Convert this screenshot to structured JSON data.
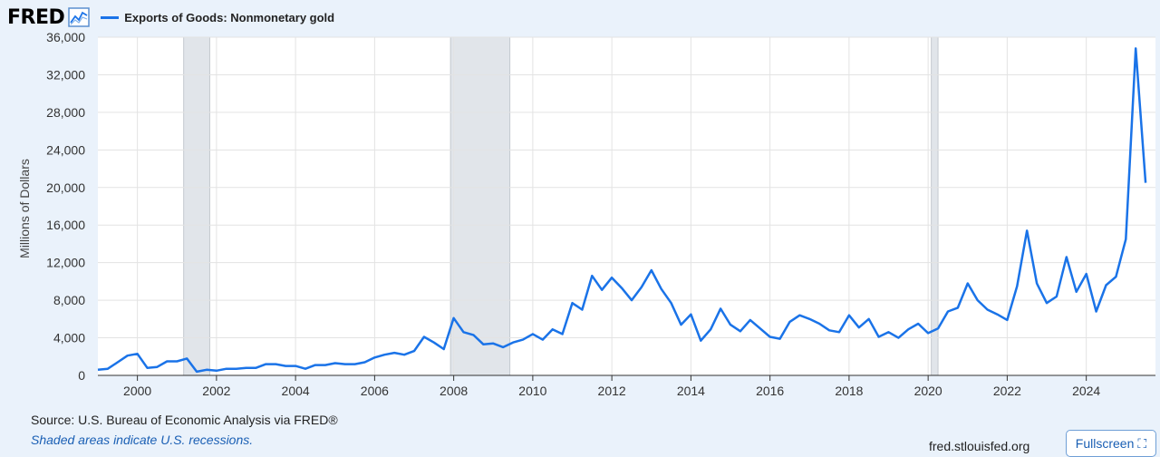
{
  "header": {
    "logo_text": "FRED",
    "legend_label": "Exports of Goods: Nonmonetary gold",
    "legend_color": "#1a73e8"
  },
  "footer": {
    "source": "Source: U.S. Bureau of Economic Analysis via FRED®",
    "note": "Shaded areas indicate U.S. recessions.",
    "site": "fred.stlouisfed.org",
    "fullscreen_label": "Fullscreen",
    "fullscreen_icon": "expand-icon"
  },
  "chart_data": {
    "type": "line",
    "title": "",
    "xlabel": "",
    "ylabel": "Millions of Dollars",
    "xlim": [
      1999.0,
      2025.75
    ],
    "ylim": [
      0,
      36000
    ],
    "yticks": [
      0,
      4000,
      8000,
      12000,
      16000,
      20000,
      24000,
      28000,
      32000,
      36000
    ],
    "ytick_labels": [
      "0",
      "4,000",
      "8,000",
      "12,000",
      "16,000",
      "20,000",
      "24,000",
      "28,000",
      "32,000",
      "36,000"
    ],
    "xticks": [
      2000,
      2002,
      2004,
      2006,
      2008,
      2010,
      2012,
      2014,
      2016,
      2018,
      2020,
      2022,
      2024
    ],
    "xtick_labels": [
      "2000",
      "2002",
      "2004",
      "2006",
      "2008",
      "2010",
      "2012",
      "2014",
      "2016",
      "2018",
      "2020",
      "2022",
      "2024"
    ],
    "grid": true,
    "recessions": [
      [
        2001.17,
        2001.83
      ],
      [
        2007.92,
        2009.42
      ],
      [
        2020.08,
        2020.25
      ]
    ],
    "series": [
      {
        "name": "Exports of Goods: Nonmonetary gold",
        "color": "#1a73e8",
        "x": [
          1999.0,
          1999.25,
          1999.5,
          1999.75,
          2000.0,
          2000.25,
          2000.5,
          2000.75,
          2001.0,
          2001.25,
          2001.5,
          2001.75,
          2002.0,
          2002.25,
          2002.5,
          2002.75,
          2003.0,
          2003.25,
          2003.5,
          2003.75,
          2004.0,
          2004.25,
          2004.5,
          2004.75,
          2005.0,
          2005.25,
          2005.5,
          2005.75,
          2006.0,
          2006.25,
          2006.5,
          2006.75,
          2007.0,
          2007.25,
          2007.5,
          2007.75,
          2008.0,
          2008.25,
          2008.5,
          2008.75,
          2009.0,
          2009.25,
          2009.5,
          2009.75,
          2010.0,
          2010.25,
          2010.5,
          2010.75,
          2011.0,
          2011.25,
          2011.5,
          2011.75,
          2012.0,
          2012.25,
          2012.5,
          2012.75,
          2013.0,
          2013.25,
          2013.5,
          2013.75,
          2014.0,
          2014.25,
          2014.5,
          2014.75,
          2015.0,
          2015.25,
          2015.5,
          2015.75,
          2016.0,
          2016.25,
          2016.5,
          2016.75,
          2017.0,
          2017.25,
          2017.5,
          2017.75,
          2018.0,
          2018.25,
          2018.5,
          2018.75,
          2019.0,
          2019.25,
          2019.5,
          2019.75,
          2020.0,
          2020.25,
          2020.5,
          2020.75,
          2021.0,
          2021.25,
          2021.5,
          2021.75,
          2022.0,
          2022.25,
          2022.5,
          2022.75,
          2023.0,
          2023.25,
          2023.5,
          2023.75,
          2024.0,
          2024.25,
          2024.5,
          2024.75,
          2025.0,
          2025.25,
          2025.5
        ],
        "y": [
          600,
          700,
          1400,
          2100,
          2300,
          800,
          900,
          1500,
          1500,
          1800,
          400,
          600,
          500,
          700,
          700,
          800,
          800,
          1200,
          1200,
          1000,
          1000,
          700,
          1100,
          1100,
          1300,
          1200,
          1200,
          1400,
          1900,
          2200,
          2400,
          2200,
          2600,
          4100,
          3500,
          2800,
          6100,
          4600,
          4300,
          3300,
          3400,
          3000,
          3500,
          3800,
          4400,
          3800,
          4900,
          4400,
          7700,
          7000,
          10600,
          9100,
          10400,
          9300,
          8000,
          9400,
          11200,
          9200,
          7700,
          5400,
          6500,
          3700,
          4900,
          7100,
          5400,
          4700,
          5900,
          5000,
          4100,
          3900,
          5700,
          6400,
          6000,
          5500,
          4800,
          4600,
          6400,
          5100,
          6000,
          4100,
          4600,
          4000,
          4900,
          5500,
          4500,
          5000,
          6800,
          7200,
          9800,
          8000,
          7000,
          6500,
          5900,
          9500,
          15400,
          9800,
          7700,
          8400,
          12600,
          8900,
          10800,
          6800,
          9600,
          10500,
          14500,
          34800,
          20500
        ]
      }
    ]
  }
}
